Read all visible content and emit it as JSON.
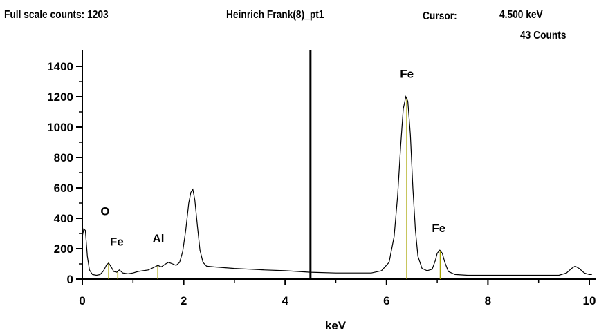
{
  "header": {
    "full_scale": "Full scale counts: 1203",
    "title": "Heinrich Frank(8)_pt1",
    "cursor_label": "Cursor:",
    "cursor_energy": "4.500 keV",
    "cursor_counts": "43 Counts"
  },
  "colors": {
    "spectrum": "#000000",
    "marker_lines": "#a8a400",
    "cursor_line": "#000000"
  },
  "chart_data": {
    "type": "line",
    "title": "Heinrich Frank(8)_pt1",
    "xlabel": "keV",
    "ylabel": "",
    "xlim": [
      0,
      10
    ],
    "ylim": [
      0,
      1400
    ],
    "x_ticks": [
      "0",
      "2",
      "4",
      "6",
      "8",
      "10"
    ],
    "y_ticks": [
      "0",
      "200",
      "400",
      "600",
      "800",
      "1000",
      "1200",
      "1400"
    ],
    "cursor_kev": 4.5,
    "cursor_counts": 43,
    "full_scale_counts": 1203,
    "spectrum": [
      [
        0.0,
        280
      ],
      [
        0.03,
        330
      ],
      [
        0.06,
        320
      ],
      [
        0.1,
        150
      ],
      [
        0.14,
        60
      ],
      [
        0.2,
        30
      ],
      [
        0.28,
        25
      ],
      [
        0.35,
        30
      ],
      [
        0.42,
        55
      ],
      [
        0.48,
        95
      ],
      [
        0.52,
        105
      ],
      [
        0.57,
        80
      ],
      [
        0.62,
        50
      ],
      [
        0.68,
        45
      ],
      [
        0.73,
        60
      ],
      [
        0.8,
        40
      ],
      [
        0.9,
        35
      ],
      [
        1.0,
        40
      ],
      [
        1.1,
        50
      ],
      [
        1.2,
        55
      ],
      [
        1.3,
        60
      ],
      [
        1.4,
        75
      ],
      [
        1.49,
        90
      ],
      [
        1.56,
        80
      ],
      [
        1.62,
        95
      ],
      [
        1.7,
        110
      ],
      [
        1.78,
        100
      ],
      [
        1.85,
        90
      ],
      [
        1.92,
        110
      ],
      [
        1.98,
        180
      ],
      [
        2.04,
        320
      ],
      [
        2.1,
        500
      ],
      [
        2.14,
        570
      ],
      [
        2.18,
        590
      ],
      [
        2.22,
        520
      ],
      [
        2.27,
        350
      ],
      [
        2.32,
        190
      ],
      [
        2.38,
        110
      ],
      [
        2.45,
        85
      ],
      [
        2.6,
        80
      ],
      [
        2.8,
        75
      ],
      [
        3.0,
        70
      ],
      [
        3.3,
        65
      ],
      [
        3.6,
        60
      ],
      [
        4.0,
        55
      ],
      [
        4.5,
        45
      ],
      [
        5.0,
        40
      ],
      [
        5.4,
        40
      ],
      [
        5.7,
        40
      ],
      [
        5.9,
        55
      ],
      [
        6.05,
        110
      ],
      [
        6.15,
        280
      ],
      [
        6.22,
        550
      ],
      [
        6.28,
        880
      ],
      [
        6.33,
        1120
      ],
      [
        6.38,
        1200
      ],
      [
        6.42,
        1170
      ],
      [
        6.47,
        950
      ],
      [
        6.52,
        600
      ],
      [
        6.57,
        320
      ],
      [
        6.62,
        150
      ],
      [
        6.7,
        70
      ],
      [
        6.8,
        55
      ],
      [
        6.9,
        65
      ],
      [
        6.96,
        120
      ],
      [
        7.0,
        170
      ],
      [
        7.05,
        190
      ],
      [
        7.1,
        170
      ],
      [
        7.15,
        110
      ],
      [
        7.22,
        50
      ],
      [
        7.35,
        30
      ],
      [
        7.6,
        25
      ],
      [
        8.0,
        25
      ],
      [
        8.5,
        25
      ],
      [
        9.0,
        25
      ],
      [
        9.4,
        25
      ],
      [
        9.55,
        40
      ],
      [
        9.65,
        70
      ],
      [
        9.72,
        85
      ],
      [
        9.8,
        70
      ],
      [
        9.9,
        40
      ],
      [
        10.0,
        30
      ],
      [
        10.05,
        30
      ]
    ],
    "peak_markers": [
      {
        "element": "O",
        "kev": 0.52,
        "height": 110
      },
      {
        "element": "Fe",
        "kev": 0.7,
        "height": 45
      },
      {
        "element": "Al",
        "kev": 1.49,
        "height": 90
      },
      {
        "element": "Fe",
        "kev": 6.4,
        "height": 1200
      },
      {
        "element": "Fe",
        "kev": 7.06,
        "height": 190
      }
    ],
    "peak_labels": [
      {
        "text": "O",
        "kev": 0.45,
        "count": 420
      },
      {
        "text": "Fe",
        "kev": 0.68,
        "count": 220
      },
      {
        "text": "Al",
        "kev": 1.5,
        "count": 240
      },
      {
        "text": "Fe",
        "kev": 6.4,
        "count": 1325
      },
      {
        "text": "Fe",
        "kev": 7.03,
        "count": 310
      }
    ]
  }
}
